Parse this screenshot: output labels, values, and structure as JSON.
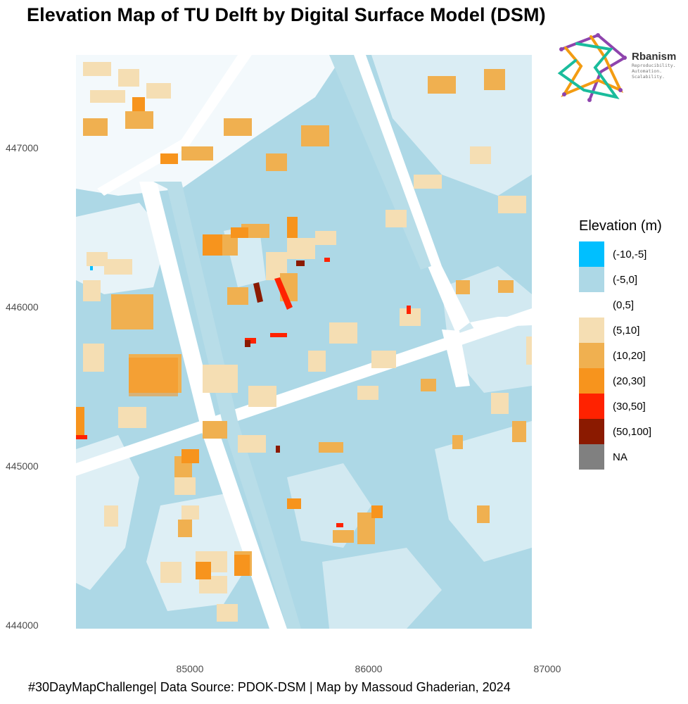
{
  "title": "Elevation Map of TU Delft by Digital Surface Model (DSM)",
  "caption": "#30DayMapChallenge| Data Source: PDOK-DSM | Map by Massoud Ghaderian, 2024",
  "logo": {
    "name": "Rbanism",
    "tagline": [
      "Reproducibility.",
      "Automation.",
      "Scalability."
    ],
    "colors": [
      "#8e44ad",
      "#f39c12",
      "#1abc9c"
    ]
  },
  "axes": {
    "y_ticks": [
      "447000",
      "446000",
      "445000",
      "444000"
    ],
    "x_ticks": [
      "85000",
      "86000",
      "87000"
    ]
  },
  "legend": {
    "title": "Elevation (m)",
    "items": [
      {
        "label": "(-10,-5]",
        "color": "#00bfff"
      },
      {
        "label": "(-5,0]",
        "color": "#add8e6"
      },
      {
        "label": "(0,5]",
        "color": "#ffffff"
      },
      {
        "label": "(5,10]",
        "color": "#f5deb3"
      },
      {
        "label": "(10,20]",
        "color": "#f0b050"
      },
      {
        "label": "(20,30]",
        "color": "#f7941d"
      },
      {
        "label": "(30,50]",
        "color": "#ff2200"
      },
      {
        "label": "(50,100]",
        "color": "#8b1a00"
      },
      {
        "label": "NA",
        "color": "#808080"
      }
    ]
  }
}
